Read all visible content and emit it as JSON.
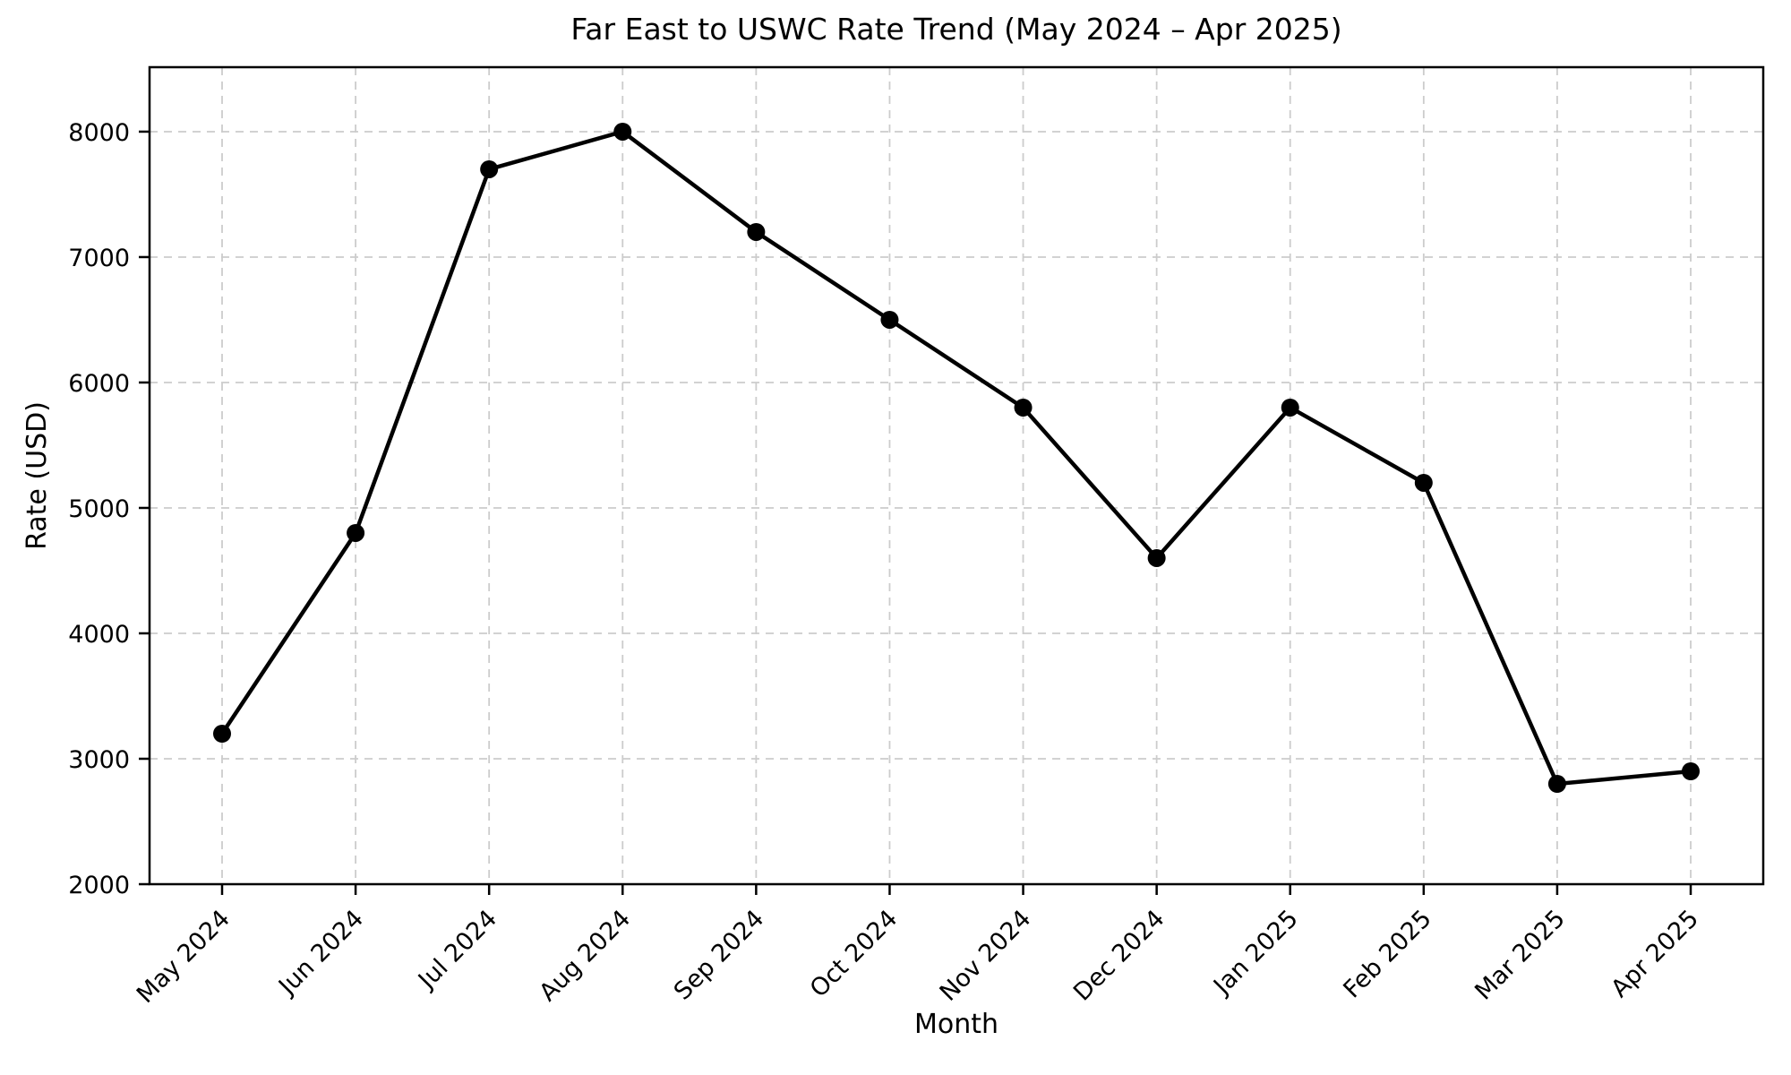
{
  "chart_data": {
    "type": "line",
    "title": "Far East to USWC Rate Trend (May 2024 – Apr 2025)",
    "xlabel": "Month",
    "ylabel": "Rate (USD)",
    "categories": [
      "May 2024",
      "Jun 2024",
      "Jul 2024",
      "Aug 2024",
      "Sep 2024",
      "Oct 2024",
      "Nov 2024",
      "Dec 2024",
      "Jan 2025",
      "Feb 2025",
      "Mar 2025",
      "Apr 2025"
    ],
    "series": [
      {
        "name": "Rate",
        "values": [
          3200,
          4800,
          7700,
          8000,
          7200,
          6500,
          5800,
          4600,
          5800,
          5200,
          2800,
          2900
        ]
      }
    ],
    "ylim": [
      2000,
      8514
    ],
    "yticks": [
      2000,
      3000,
      4000,
      5000,
      6000,
      7000,
      8000
    ],
    "grid": true,
    "legend": "none",
    "colors": {
      "line": "#000000",
      "marker": "#000000",
      "grid": "#cccccc",
      "axis": "#000000",
      "background": "#ffffff"
    },
    "marker_style": "circle",
    "line_style": "solid",
    "grid_style": "dashed"
  }
}
